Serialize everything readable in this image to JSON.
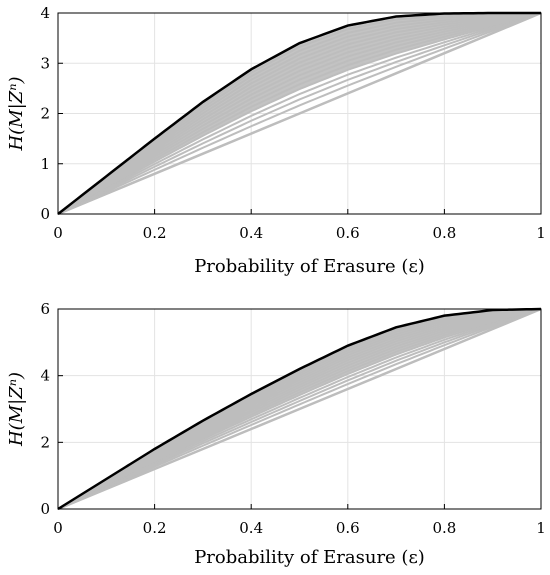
{
  "chart_data": [
    {
      "type": "line",
      "title": "",
      "xlabel": "Probability of Erasure (ε)",
      "ylabel": "H(M|Zⁿ)",
      "xlim": [
        0,
        1
      ],
      "ylim": [
        0,
        4
      ],
      "xticks": [
        "0",
        "0.2",
        "0.4",
        "0.6",
        "0.8",
        "1"
      ],
      "yticks": [
        "0",
        "1",
        "2",
        "3",
        "4"
      ],
      "grid": true,
      "colors": {
        "upper_bound": "#000000",
        "family": "#bdbdbd"
      },
      "series": [
        {
          "x": [
            0,
            0.1,
            0.2,
            0.3,
            0.4,
            0.5,
            0.6,
            0.7,
            0.8,
            0.9,
            1.0
          ],
          "y": [
            0,
            0.75,
            1.5,
            2.23,
            2.88,
            3.4,
            3.75,
            3.93,
            3.99,
            4.0,
            4.0
          ]
        },
        {
          "x": [
            0,
            0.1,
            0.2,
            0.3,
            0.4,
            0.5,
            0.6,
            0.7,
            0.8,
            0.9,
            1.0
          ],
          "y": [
            0,
            0.4,
            0.8,
            1.2,
            1.6,
            2.0,
            2.4,
            2.8,
            3.2,
            3.6,
            4.0
          ]
        }
      ],
      "family_count": 16
    },
    {
      "type": "line",
      "title": "",
      "xlabel": "Probability of Erasure (ε)",
      "ylabel": "H(M|Zⁿ)",
      "xlim": [
        0,
        1
      ],
      "ylim": [
        0,
        6
      ],
      "xticks": [
        "0",
        "0.2",
        "0.4",
        "0.6",
        "0.8",
        "1"
      ],
      "yticks": [
        "0",
        "2",
        "4",
        "6"
      ],
      "grid": true,
      "colors": {
        "upper_bound": "#000000",
        "family": "#bdbdbd"
      },
      "series": [
        {
          "x": [
            0,
            0.1,
            0.2,
            0.3,
            0.4,
            0.5,
            0.6,
            0.7,
            0.8,
            0.9,
            1.0
          ],
          "y": [
            0,
            0.9,
            1.8,
            2.65,
            3.45,
            4.2,
            4.9,
            5.45,
            5.8,
            5.97,
            6.0
          ]
        },
        {
          "x": [
            0,
            0.1,
            0.2,
            0.3,
            0.4,
            0.5,
            0.6,
            0.7,
            0.8,
            0.9,
            1.0
          ],
          "y": [
            0,
            0.6,
            1.2,
            1.8,
            2.4,
            3.0,
            3.6,
            4.2,
            4.8,
            5.4,
            6.0
          ]
        }
      ],
      "family_count": 16
    }
  ]
}
